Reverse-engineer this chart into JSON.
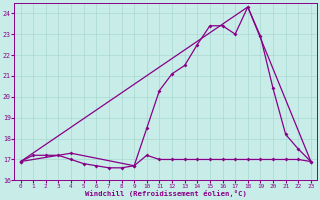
{
  "xlabel": "Windchill (Refroidissement éolien,°C)",
  "background_color": "#c8ede8",
  "grid_color": "#a8d8d0",
  "line_color": "#880088",
  "xlim": [
    -0.5,
    23.5
  ],
  "ylim": [
    16,
    24.5
  ],
  "yticks": [
    16,
    17,
    18,
    19,
    20,
    21,
    22,
    23,
    24
  ],
  "xticks": [
    0,
    1,
    2,
    3,
    4,
    5,
    6,
    7,
    8,
    9,
    10,
    11,
    12,
    13,
    14,
    15,
    16,
    17,
    18,
    19,
    20,
    21,
    22,
    23
  ],
  "series1_x": [
    0,
    1,
    2,
    3,
    4,
    5,
    6,
    7,
    8,
    9,
    10,
    11,
    12,
    13,
    14,
    15,
    16,
    17,
    18,
    19,
    20,
    21,
    22,
    23
  ],
  "series1_y": [
    16.9,
    17.2,
    17.2,
    17.2,
    17.0,
    16.8,
    16.7,
    16.6,
    16.6,
    16.7,
    17.2,
    17.0,
    17.0,
    17.0,
    17.0,
    17.0,
    17.0,
    17.0,
    17.0,
    17.0,
    17.0,
    17.0,
    17.0,
    16.9
  ],
  "series2_x": [
    0,
    4,
    9,
    10,
    11,
    12,
    13,
    14,
    15,
    16,
    17,
    18,
    19,
    20,
    21,
    22,
    23
  ],
  "series2_y": [
    16.9,
    17.3,
    16.7,
    18.5,
    20.3,
    21.1,
    21.5,
    22.5,
    23.4,
    23.4,
    23.0,
    24.3,
    22.9,
    20.4,
    18.2,
    17.5,
    16.9
  ],
  "series3_x": [
    0,
    18,
    23
  ],
  "series3_y": [
    16.9,
    24.3,
    16.9
  ]
}
